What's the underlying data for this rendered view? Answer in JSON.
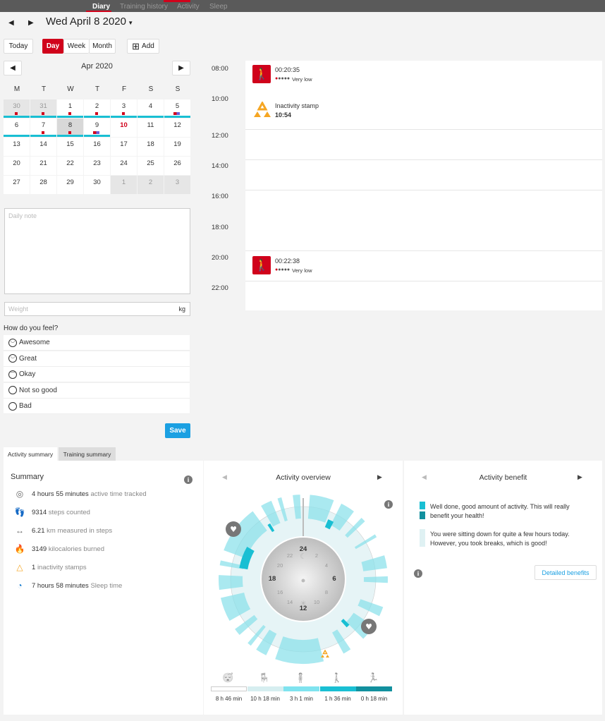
{
  "nav": {
    "tabs": [
      "Diary",
      "Training history",
      "Activity",
      "Sleep"
    ]
  },
  "date": {
    "label": "Wed April 8 2020"
  },
  "toolbar": {
    "today": "Today",
    "day": "Day",
    "week": "Week",
    "month": "Month",
    "add": "Add"
  },
  "calendar": {
    "month": "Apr 2020",
    "dow": [
      "M",
      "T",
      "W",
      "T",
      "F",
      "S",
      "S"
    ],
    "weeks": [
      [
        "30",
        "31",
        "1",
        "2",
        "3",
        "4",
        "5"
      ],
      [
        "6",
        "7",
        "8",
        "9",
        "10",
        "11",
        "12"
      ],
      [
        "13",
        "14",
        "15",
        "16",
        "17",
        "18",
        "19"
      ],
      [
        "20",
        "21",
        "22",
        "23",
        "24",
        "25",
        "26"
      ],
      [
        "27",
        "28",
        "29",
        "30",
        "1",
        "2",
        "3"
      ]
    ]
  },
  "daily_note": {
    "placeholder": "Daily note"
  },
  "weight": {
    "placeholder": "Weight",
    "unit": "kg"
  },
  "feel": {
    "question": "How do you feel?",
    "options": [
      "Awesome",
      "Great",
      "Okay",
      "Not so good",
      "Bad"
    ],
    "save": "Save"
  },
  "timeline": {
    "hours": [
      "08:00",
      "10:00",
      "12:00",
      "14:00",
      "16:00",
      "18:00",
      "20:00",
      "22:00"
    ],
    "events": [
      {
        "duration": "00:20:35",
        "intensity": "Very low"
      },
      {
        "title": "Inactivity stamp",
        "time": "10:54"
      },
      {
        "duration": "00:22:38",
        "intensity": "Very low"
      }
    ]
  },
  "bottom_tabs": [
    "Activity summary",
    "Training summary"
  ],
  "summary": {
    "title": "Summary",
    "rows": [
      {
        "value": "4 hours 55 minutes",
        "label": "active time tracked",
        "icon": "target-icon"
      },
      {
        "value": "9314",
        "label": "steps counted",
        "icon": "footsteps-icon"
      },
      {
        "value": "6.21",
        "label": "km measured in steps",
        "icon": "distance-icon"
      },
      {
        "value": "3149",
        "label": "kilocalories burned",
        "icon": "flame-icon"
      },
      {
        "value": "1",
        "label": "inactivity stamps",
        "icon": "inactivity-icon"
      },
      {
        "value": "7 hours 58 minutes",
        "label": "Sleep time",
        "icon": "sleep-icon"
      }
    ]
  },
  "overview": {
    "title": "Activity overview",
    "clock": {
      "top": "24",
      "right": "6",
      "bottom": "12",
      "left": "18",
      "minor": [
        "22",
        "2",
        "20",
        "4",
        "16",
        "8",
        "14",
        "10"
      ]
    },
    "legend": [
      {
        "label": "8 h 46 min",
        "color": "#ffffff"
      },
      {
        "label": "10 h 18 min",
        "color": "#d6eef0"
      },
      {
        "label": "3 h 1 min",
        "color": "#7fe3ef"
      },
      {
        "label": "1 h 36 min",
        "color": "#19bfd3"
      },
      {
        "label": "0 h 18 min",
        "color": "#12909e"
      }
    ]
  },
  "benefit": {
    "title": "Activity benefit",
    "items": [
      "Well done, good amount of activity. This will really benefit your health!",
      "You were sitting down for quite a few hours today. However, you took breaks, which is good!"
    ],
    "button": "Detailed benefits"
  },
  "colors": {
    "brand": "#d0021b",
    "accent": "#1ba0e2",
    "activity": "#19bfd3",
    "inactivity": "#f5a623"
  }
}
